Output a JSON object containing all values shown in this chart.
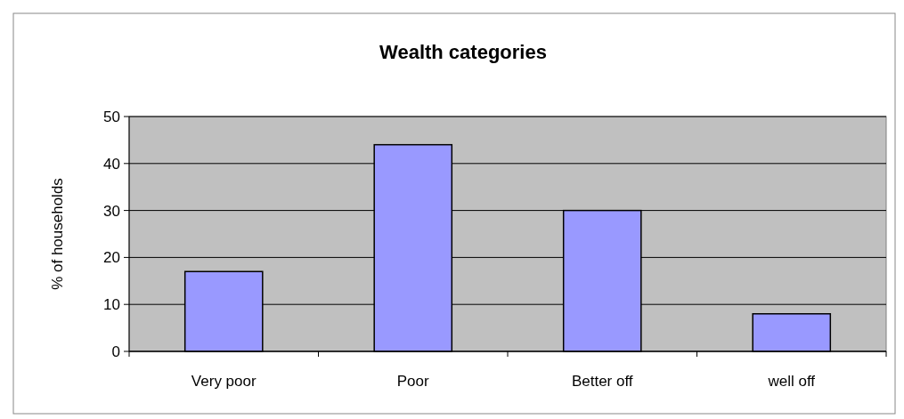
{
  "chart_data": {
    "type": "bar",
    "title": "Wealth categories",
    "ylabel": "% of households",
    "categories": [
      "Very poor",
      "Poor",
      "Better off",
      "well off"
    ],
    "values": [
      17,
      44,
      30,
      8
    ],
    "color": "#9999ff",
    "ylim": [
      0,
      50
    ],
    "yticks": [
      0,
      10,
      20,
      30,
      40,
      50
    ],
    "grid": "y"
  }
}
